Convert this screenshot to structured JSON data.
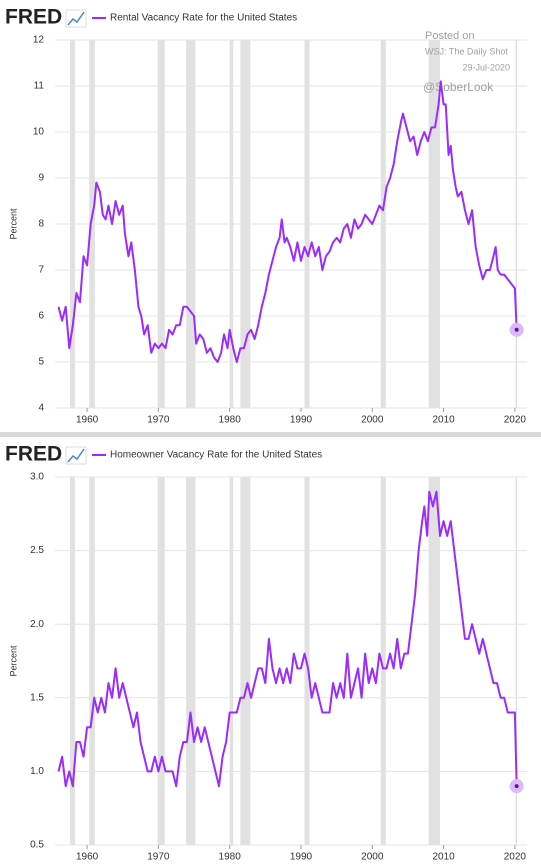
{
  "chart_data": [
    {
      "type": "line",
      "source_logo": "FRED",
      "ylabel": "Percent",
      "annotations": [
        "Posted on",
        "WSJ: The Daily Shot",
        "29-Jul-2020",
        "@SoberLook"
      ],
      "xlim": [
        1955.5,
        2021.7
      ],
      "xticks": [
        1960,
        1970,
        1980,
        1990,
        2000,
        2010,
        2020
      ],
      "ylim": [
        4,
        12
      ],
      "yticks": [
        4,
        5,
        6,
        7,
        8,
        9,
        10,
        11,
        12
      ],
      "grid": true,
      "recessions": [
        [
          1957.6,
          1958.3
        ],
        [
          1960.3,
          1961.1
        ],
        [
          1969.9,
          1970.9
        ],
        [
          1973.9,
          1975.2
        ],
        [
          1980.0,
          1980.5
        ],
        [
          1981.5,
          1982.9
        ],
        [
          1990.5,
          1991.2
        ],
        [
          2001.2,
          2001.9
        ],
        [
          2007.9,
          2009.5
        ],
        [
          2020.1,
          2020.3
        ]
      ],
      "x": [
        1956,
        1956.5,
        1957,
        1957.5,
        1958,
        1958.5,
        1959,
        1959.5,
        1960,
        1960.5,
        1961,
        1961.3,
        1961.8,
        1962.2,
        1962.6,
        1963,
        1963.5,
        1964,
        1964.5,
        1965,
        1965.3,
        1965.8,
        1966.2,
        1966.7,
        1967.2,
        1967.6,
        1968,
        1968.5,
        1969,
        1969.5,
        1970,
        1970.5,
        1971,
        1971.5,
        1972,
        1972.5,
        1973,
        1973.5,
        1974,
        1974.5,
        1975,
        1975.3,
        1975.8,
        1976.3,
        1976.8,
        1977.3,
        1977.8,
        1978.3,
        1978.8,
        1979.2,
        1979.7,
        1980,
        1980.5,
        1981,
        1981.5,
        1982,
        1982.5,
        1983,
        1983.5,
        1984,
        1984.5,
        1985,
        1985.5,
        1986,
        1986.5,
        1987,
        1987.3,
        1987.7,
        1988,
        1988.5,
        1989,
        1989.5,
        1990,
        1990.5,
        1991,
        1991.5,
        1992,
        1992.5,
        1993,
        1993.5,
        1994,
        1994.5,
        1995,
        1995.5,
        1996,
        1996.5,
        1997,
        1997.5,
        1998,
        1998.5,
        1999,
        1999.5,
        2000,
        2000.5,
        2001,
        2001.5,
        2002,
        2002.5,
        2003,
        2003.5,
        2004,
        2004.3,
        2004.8,
        2005.3,
        2005.8,
        2006.3,
        2006.8,
        2007.3,
        2007.8,
        2008.3,
        2008.8,
        2009.3,
        2009.6,
        2010,
        2010.3,
        2010.7,
        2011,
        2011.3,
        2011.7,
        2012,
        2012.5,
        2013,
        2013.5,
        2014,
        2014.5,
        2015,
        2015.5,
        2016,
        2016.5,
        2017,
        2017.3,
        2017.6,
        2018,
        2018.5,
        2019,
        2019.5,
        2020,
        2020.25
      ],
      "series": [
        {
          "name": "Rental Vacancy Rate for the United States",
          "color": "#9a2cff",
          "values": [
            6.2,
            5.9,
            6.2,
            5.3,
            5.8,
            6.5,
            6.3,
            7.3,
            7.1,
            8.0,
            8.4,
            8.9,
            8.7,
            8.2,
            8.1,
            8.4,
            8.0,
            8.5,
            8.2,
            8.4,
            7.8,
            7.3,
            7.6,
            7.0,
            6.2,
            6.0,
            5.6,
            5.8,
            5.2,
            5.4,
            5.3,
            5.4,
            5.3,
            5.7,
            5.6,
            5.8,
            5.8,
            6.2,
            6.2,
            6.1,
            6.0,
            5.4,
            5.6,
            5.5,
            5.2,
            5.3,
            5.1,
            5.0,
            5.2,
            5.6,
            5.3,
            5.7,
            5.3,
            5.0,
            5.3,
            5.3,
            5.6,
            5.7,
            5.5,
            5.8,
            6.2,
            6.5,
            6.9,
            7.2,
            7.5,
            7.7,
            8.1,
            7.6,
            7.7,
            7.5,
            7.2,
            7.6,
            7.2,
            7.5,
            7.3,
            7.6,
            7.3,
            7.5,
            7.0,
            7.3,
            7.4,
            7.6,
            7.7,
            7.6,
            7.9,
            8.0,
            7.7,
            8.1,
            7.9,
            8.0,
            8.2,
            8.1,
            8.0,
            8.2,
            8.4,
            8.3,
            8.8,
            9.0,
            9.3,
            9.8,
            10.2,
            10.4,
            10.1,
            9.8,
            9.9,
            9.5,
            9.8,
            10.0,
            9.8,
            10.1,
            10.1,
            10.6,
            11.1,
            10.6,
            10.6,
            9.5,
            9.7,
            9.2,
            8.8,
            8.6,
            8.7,
            8.3,
            8.0,
            8.3,
            7.5,
            7.1,
            6.8,
            7.0,
            7.0,
            7.3,
            7.5,
            7.0,
            6.9,
            6.9,
            6.8,
            6.7,
            6.6,
            5.7
          ]
        }
      ]
    },
    {
      "type": "line",
      "source_logo": "FRED",
      "ylabel": "Percent",
      "xlim": [
        1955.5,
        2021.7
      ],
      "xticks": [
        1960,
        1970,
        1980,
        1990,
        2000,
        2010,
        2020
      ],
      "ylim": [
        0.5,
        3.0
      ],
      "yticks": [
        0.5,
        {
          "value": 1,
          "label": "1.0"
        },
        1.5,
        {
          "value": 2,
          "label": "2.0"
        },
        2.5,
        {
          "value": 3,
          "label": "3.0"
        }
      ],
      "grid": true,
      "recessions": [
        [
          1957.6,
          1958.3
        ],
        [
          1960.3,
          1961.1
        ],
        [
          1969.9,
          1970.9
        ],
        [
          1973.9,
          1975.2
        ],
        [
          1980.0,
          1980.5
        ],
        [
          1981.5,
          1982.9
        ],
        [
          1990.5,
          1991.2
        ],
        [
          2001.2,
          2001.9
        ],
        [
          2007.9,
          2009.5
        ],
        [
          2020.1,
          2020.3
        ]
      ],
      "x": [
        1956,
        1956.5,
        1957,
        1957.5,
        1958,
        1958.5,
        1959,
        1959.5,
        1960,
        1960.5,
        1961,
        1961.5,
        1962,
        1962.5,
        1963,
        1963.5,
        1964,
        1964.5,
        1965,
        1965.5,
        1966,
        1966.5,
        1967,
        1967.5,
        1968,
        1968.5,
        1969,
        1969.5,
        1970,
        1970.5,
        1971,
        1971.5,
        1972,
        1972.5,
        1973,
        1973.5,
        1974,
        1974.5,
        1975,
        1975.5,
        1976,
        1976.5,
        1977,
        1977.5,
        1978,
        1978.5,
        1979,
        1979.5,
        1980,
        1980.5,
        1981,
        1981.5,
        1982,
        1982.5,
        1983,
        1983.5,
        1984,
        1984.5,
        1985,
        1985.5,
        1986,
        1986.5,
        1987,
        1987.5,
        1988,
        1988.5,
        1989,
        1989.5,
        1990,
        1990.5,
        1991,
        1991.5,
        1992,
        1992.5,
        1993,
        1993.5,
        1994,
        1994.5,
        1995,
        1995.5,
        1996,
        1996.5,
        1997,
        1997.5,
        1998,
        1998.5,
        1999,
        1999.5,
        2000,
        2000.5,
        2001,
        2001.5,
        2002,
        2002.5,
        2003,
        2003.5,
        2004,
        2004.5,
        2005,
        2005.5,
        2006,
        2006.5,
        2007,
        2007.3,
        2007.7,
        2008,
        2008.5,
        2009,
        2009.5,
        2010,
        2010.5,
        2011,
        2011.5,
        2012,
        2012.5,
        2013,
        2013.5,
        2014,
        2014.5,
        2015,
        2015.5,
        2016,
        2016.5,
        2017,
        2017.5,
        2018,
        2018.5,
        2019,
        2019.5,
        2020,
        2020.25
      ],
      "series": [
        {
          "name": "Homeowner Vacancy Rate for the United States",
          "color": "#9a2cff",
          "values": [
            1.0,
            1.1,
            0.9,
            1.0,
            0.9,
            1.2,
            1.2,
            1.1,
            1.3,
            1.3,
            1.5,
            1.4,
            1.5,
            1.4,
            1.6,
            1.5,
            1.7,
            1.5,
            1.6,
            1.5,
            1.4,
            1.3,
            1.4,
            1.2,
            1.1,
            1.0,
            1.0,
            1.1,
            1.0,
            1.1,
            1.0,
            1.0,
            1.0,
            0.9,
            1.1,
            1.2,
            1.2,
            1.4,
            1.2,
            1.3,
            1.2,
            1.3,
            1.2,
            1.1,
            1.0,
            0.9,
            1.1,
            1.2,
            1.4,
            1.4,
            1.4,
            1.5,
            1.5,
            1.6,
            1.5,
            1.6,
            1.7,
            1.7,
            1.6,
            1.9,
            1.7,
            1.6,
            1.7,
            1.6,
            1.7,
            1.6,
            1.8,
            1.7,
            1.7,
            1.8,
            1.7,
            1.5,
            1.6,
            1.5,
            1.4,
            1.4,
            1.4,
            1.6,
            1.5,
            1.6,
            1.5,
            1.8,
            1.5,
            1.6,
            1.7,
            1.5,
            1.8,
            1.6,
            1.7,
            1.6,
            1.8,
            1.7,
            1.7,
            1.8,
            1.7,
            1.9,
            1.7,
            1.8,
            1.8,
            2.0,
            2.2,
            2.5,
            2.7,
            2.8,
            2.6,
            2.9,
            2.8,
            2.9,
            2.6,
            2.7,
            2.6,
            2.7,
            2.5,
            2.3,
            2.1,
            1.9,
            1.9,
            2.0,
            1.9,
            1.8,
            1.9,
            1.8,
            1.7,
            1.6,
            1.6,
            1.5,
            1.5,
            1.4,
            1.4,
            1.4,
            0.9
          ]
        }
      ]
    }
  ]
}
